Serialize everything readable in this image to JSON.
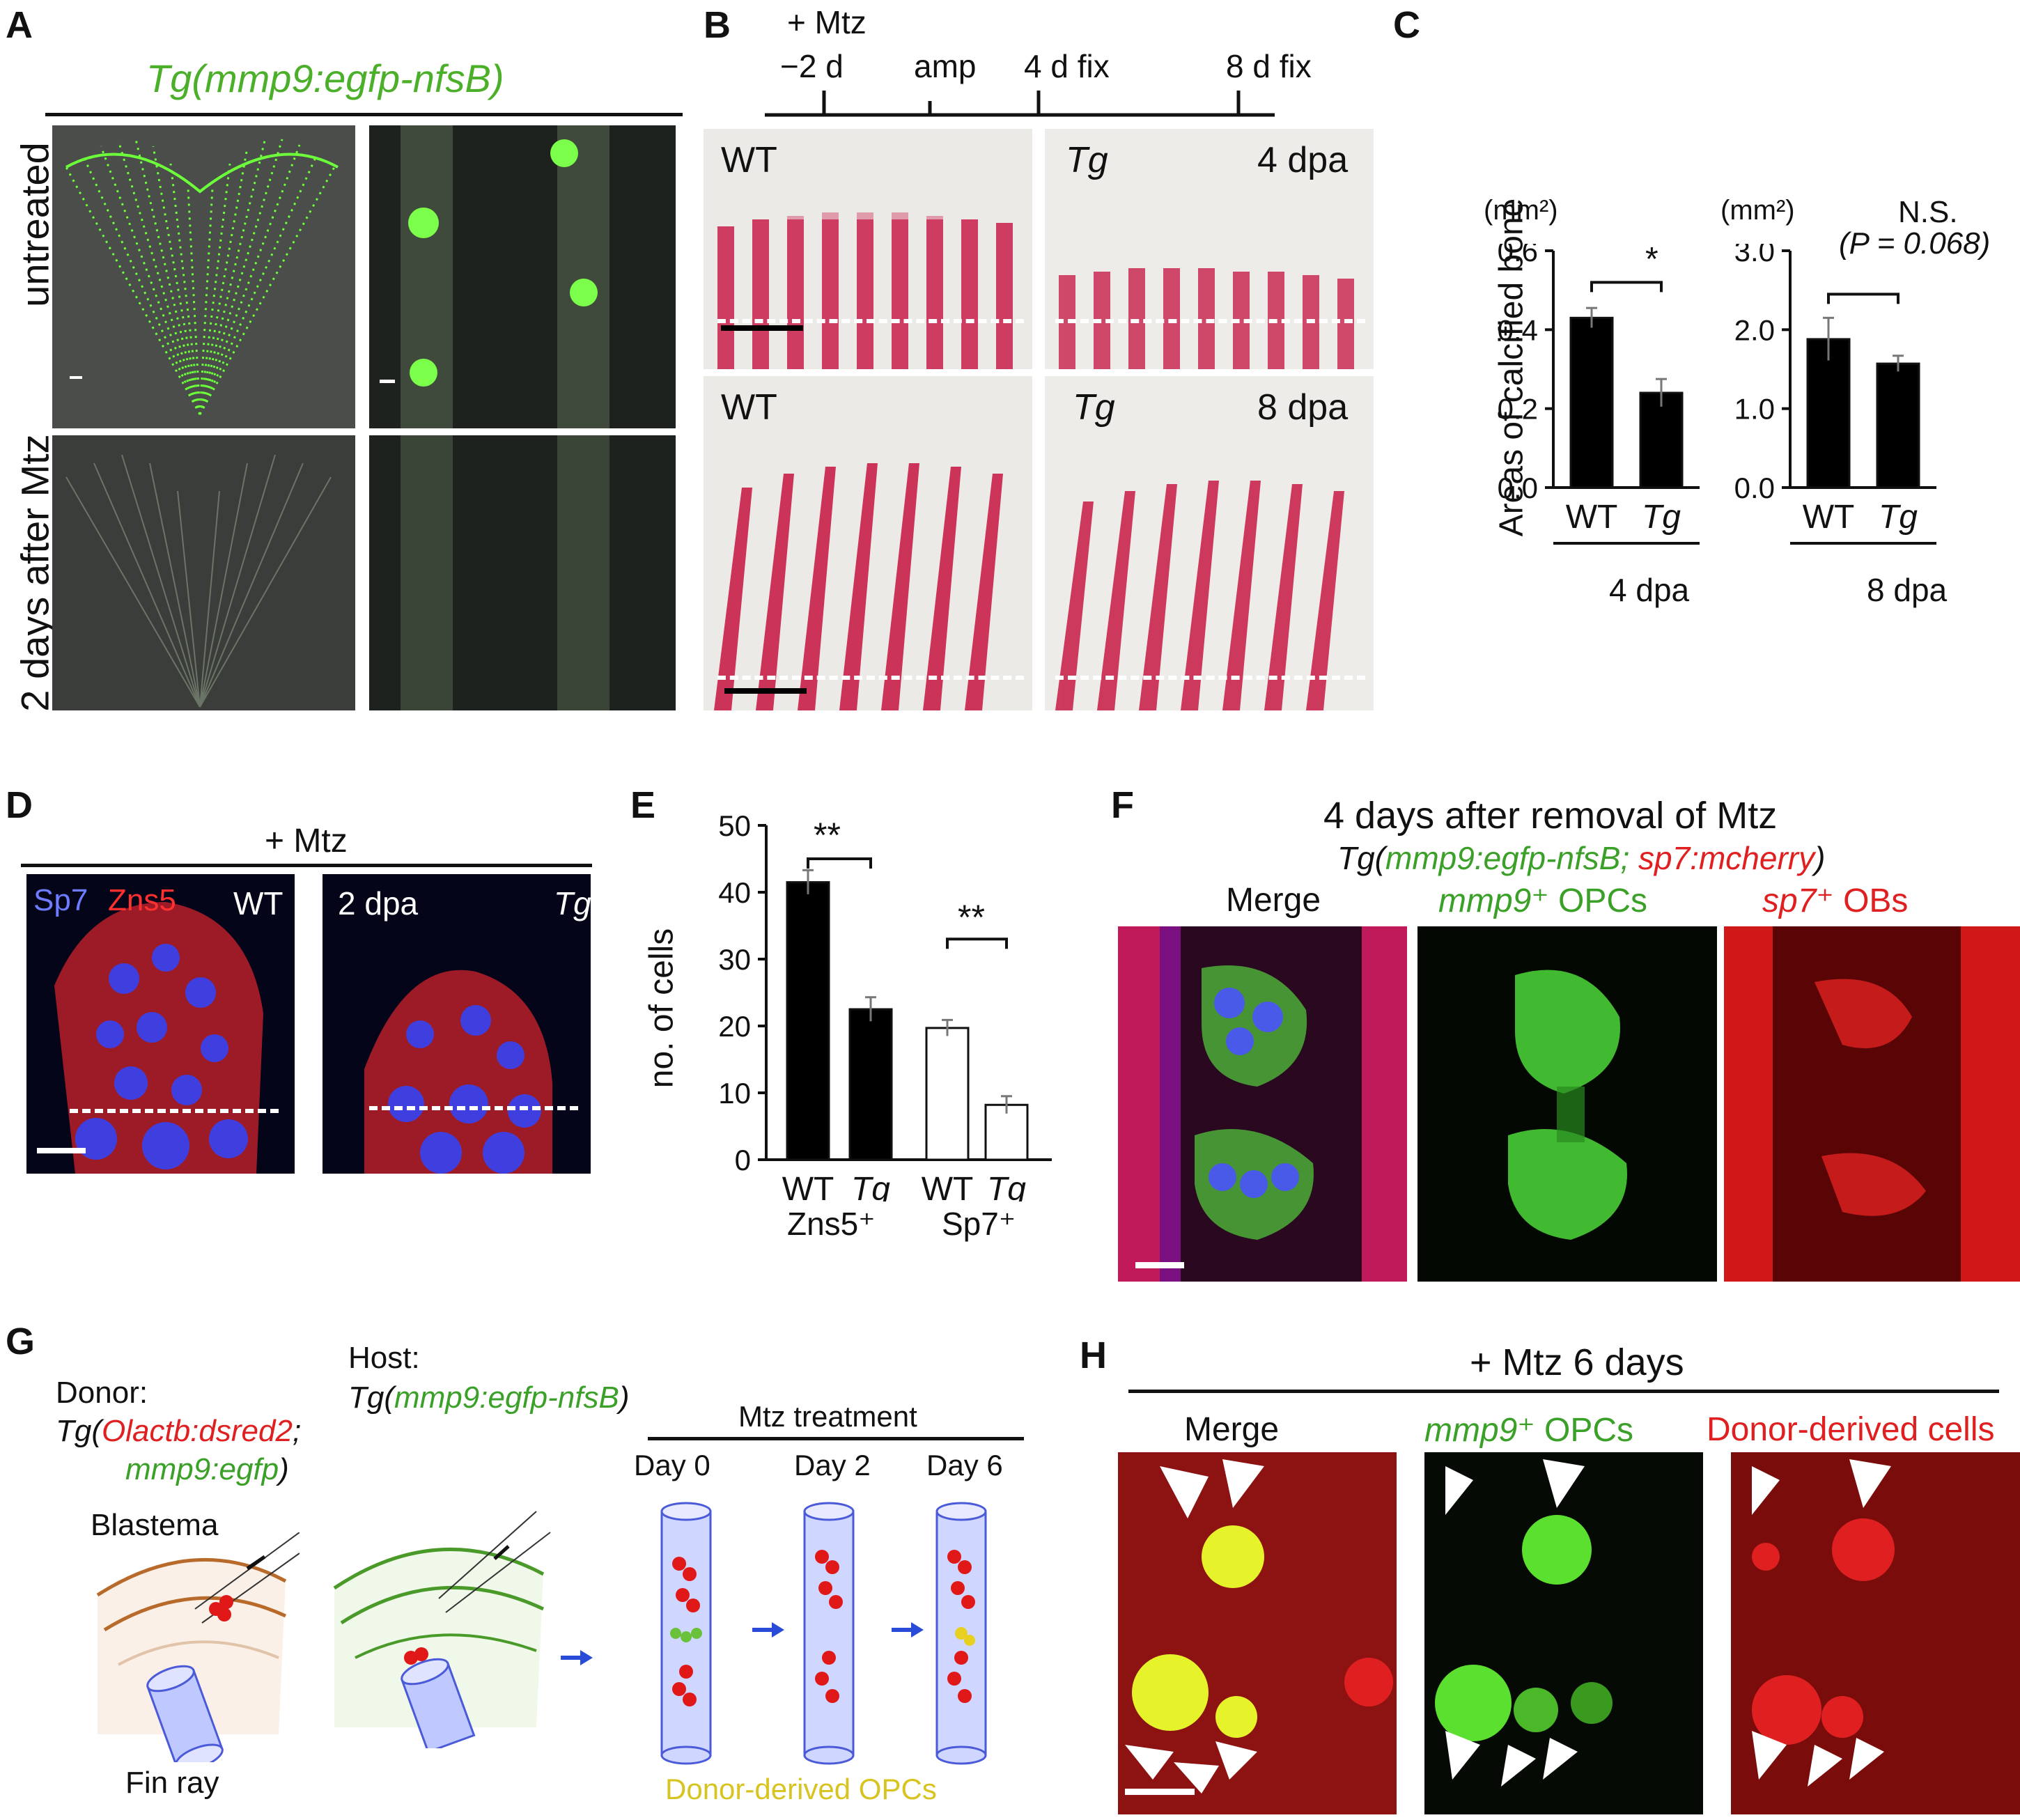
{
  "panels": {
    "A": {
      "label": "A",
      "title": "Tg(mmp9:egfp-nfsB)",
      "rows": [
        "untreated",
        "2 days after Mtz"
      ]
    },
    "B": {
      "label": "B",
      "timeline": [
        "+ Mtz",
        "−2 d",
        "amp",
        "4 d fix",
        "8 d fix"
      ],
      "wt": "WT",
      "tg": "Tg",
      "dpa4": "4 dpa",
      "dpa8": "8 dpa"
    },
    "C": {
      "label": "C",
      "ylabel": "Areas of calcified bone",
      "unit": "(mm²)",
      "sig_left": "*",
      "sig_right": "N.S.",
      "p_value": "(P = 0.068)",
      "group_left": "4 dpa",
      "group_right": "8 dpa"
    },
    "D": {
      "label": "D",
      "title": "+ Mtz",
      "sp7": "Sp7",
      "zns5": "Zns5",
      "wt": "WT",
      "dpa2": "2 dpa",
      "tg": "Tg"
    },
    "E": {
      "label": "E",
      "ylabel": "no. of cells",
      "sig": "**",
      "group1": "Zns5⁺",
      "group2": "Sp7⁺"
    },
    "F": {
      "label": "F",
      "title": "4 days after removal of Mtz",
      "subtitle_prefix": "Tg(",
      "subtitle_green": "mmp9:egfp-nfsB;",
      "subtitle_red": "sp7:mcherry",
      "subtitle_suffix": ")",
      "col1": "Merge",
      "col2_it": "mmp9",
      "col2_rest": "⁺ OPCs",
      "col3_it": "sp7",
      "col3_rest": "⁺ OBs"
    },
    "G": {
      "label": "G",
      "donor": "Donor:",
      "donor_line1_pre": "Tg(",
      "donor_line1_red": "Olactb:dsred2",
      "donor_line1_post": ";",
      "donor_line2_green": "mmp9:egfp",
      "donor_line2_post": ")",
      "host": "Host:",
      "host_pre": "Tg(",
      "host_green": "mmp9:egfp-nfsB",
      "host_post": ")",
      "blastema": "Blastema",
      "fin_ray": "Fin ray",
      "treatment": "Mtz treatment",
      "days": [
        "Day 0",
        "Day 2",
        "Day 6"
      ],
      "donor_opcs": "Donor-derived OPCs"
    },
    "H": {
      "label": "H",
      "title": "+ Mtz 6 days",
      "col1": "Merge",
      "col2_it": "mmp9",
      "col2_rest": "⁺ OPCs",
      "col3": "Donor-derived cells"
    }
  },
  "chart_data": [
    {
      "type": "bar",
      "panel": "C-left",
      "categories": [
        "WT",
        "Tg"
      ],
      "values": [
        0.43,
        0.24
      ],
      "errors": [
        0.025,
        0.035
      ],
      "ylim": [
        0,
        0.6
      ],
      "yticks": [
        "0.0",
        "0.2",
        "0.4",
        "0.6"
      ],
      "ylabel": "Areas of calcified bone",
      "colors": [
        "#000000",
        "#000000"
      ]
    },
    {
      "type": "bar",
      "panel": "C-right",
      "categories": [
        "WT",
        "Tg"
      ],
      "values": [
        1.88,
        1.57
      ],
      "errors": [
        0.27,
        0.1
      ],
      "ylim": [
        0,
        3.0
      ],
      "yticks": [
        "0.0",
        "1.0",
        "2.0",
        "3.0"
      ],
      "colors": [
        "#000000",
        "#000000"
      ]
    },
    {
      "type": "bar",
      "panel": "E",
      "categories": [
        "WT",
        "Tg",
        "WT",
        "Tg"
      ],
      "values": [
        41.5,
        22.5,
        19.7,
        8.2
      ],
      "errors": [
        1.8,
        1.8,
        1.2,
        1.3
      ],
      "ylim": [
        0,
        50
      ],
      "yticks": [
        "0",
        "10",
        "20",
        "30",
        "40",
        "50"
      ],
      "ylabel": "no. of cells",
      "colors": [
        "#000000",
        "#000000",
        "#ffffff",
        "#ffffff"
      ]
    }
  ]
}
